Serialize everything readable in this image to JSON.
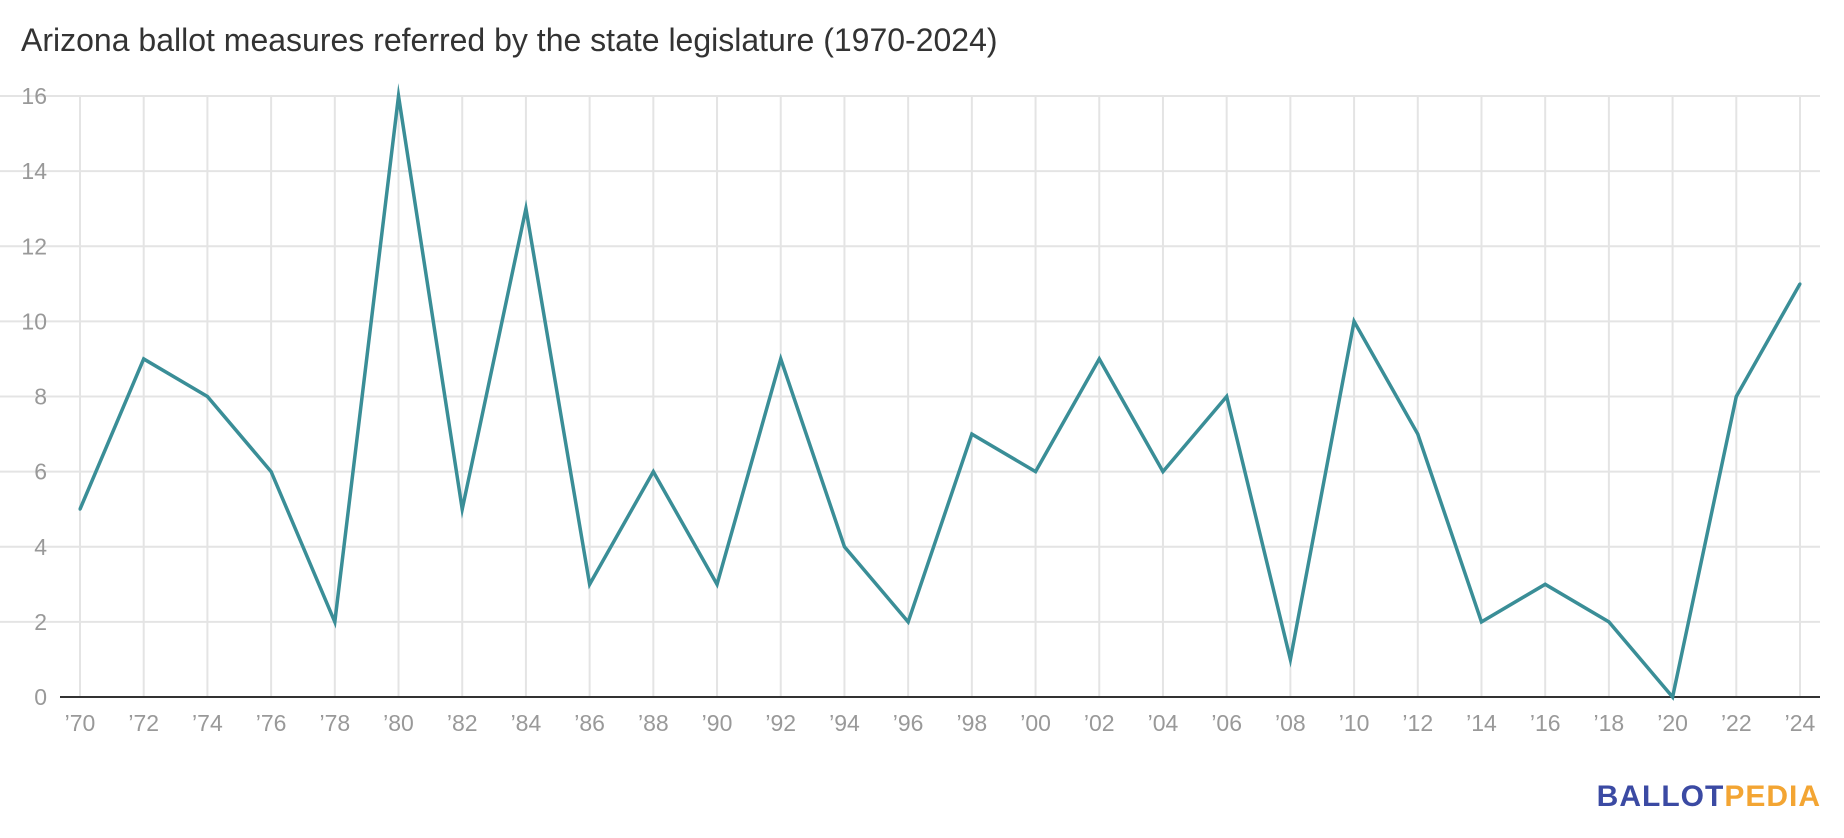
{
  "chart_data": {
    "type": "line",
    "title": "Arizona ballot measures referred by the state legislature (1970-2024)",
    "xlabel": "",
    "ylabel": "",
    "x": [
      1970,
      1972,
      1974,
      1976,
      1978,
      1980,
      1982,
      1984,
      1986,
      1988,
      1990,
      1992,
      1994,
      1996,
      1998,
      2000,
      2002,
      2004,
      2006,
      2008,
      2010,
      2012,
      2014,
      2016,
      2018,
      2020,
      2022,
      2024
    ],
    "x_tick_labels": [
      "’70",
      "’72",
      "’74",
      "’76",
      "’78",
      "’80",
      "’82",
      "’84",
      "’86",
      "’88",
      "’90",
      "’92",
      "’94",
      "’96",
      "’98",
      "’00",
      "’02",
      "’04",
      "’06",
      "’08",
      "’10",
      "’12",
      "’14",
      "’16",
      "’18",
      "’20",
      "’22",
      "’24"
    ],
    "series": [
      {
        "values": [
          5,
          9,
          8,
          6,
          2,
          16,
          5,
          13,
          3,
          6,
          3,
          9,
          4,
          2,
          7,
          6,
          9,
          6,
          8,
          1,
          10,
          7,
          2,
          3,
          2,
          0,
          8,
          11
        ]
      }
    ],
    "y_ticks": [
      0,
      2,
      4,
      6,
      8,
      10,
      12,
      14,
      16
    ],
    "ylim": [
      0,
      16
    ],
    "grid": true,
    "line_color": "#3a8e97"
  },
  "branding": {
    "logo_part1": "BALLOT",
    "logo_part2": "PEDIA",
    "logo_color1": "#3b4aa3",
    "logo_color2": "#f3a533"
  }
}
